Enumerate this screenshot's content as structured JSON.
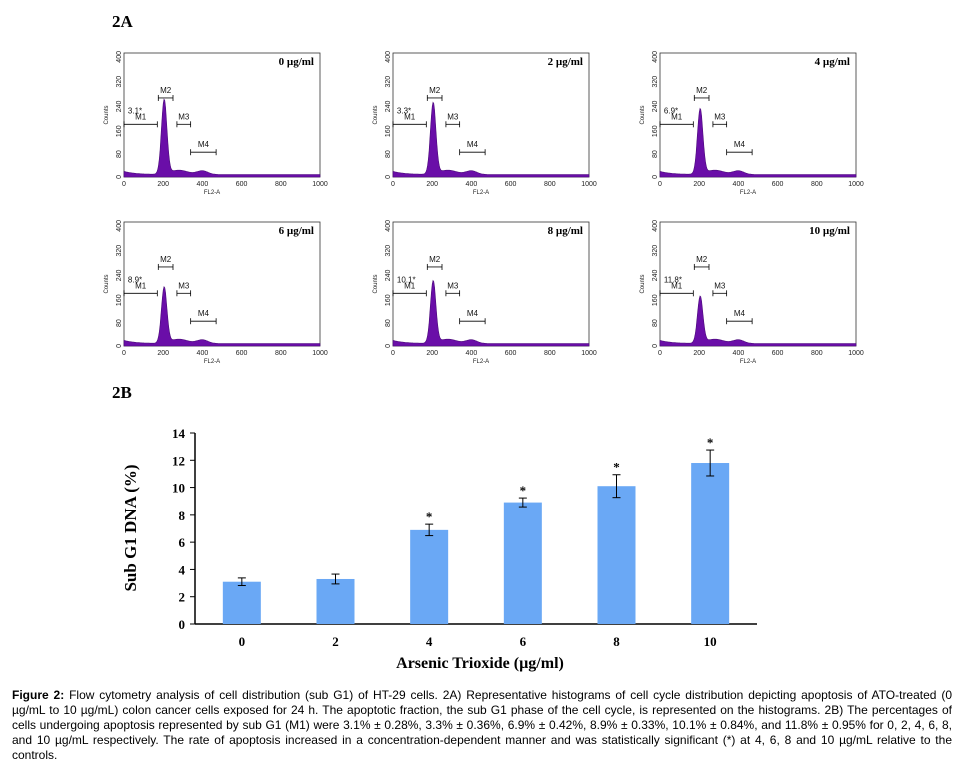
{
  "chart_data": [
    {
      "type": "histogram-grid",
      "panel_label": "2A",
      "x_tick_labels": [
        "0",
        "200",
        "400",
        "600",
        "800",
        "1000"
      ],
      "y_tick_labels": [
        "0",
        "80",
        "160",
        "240",
        "320",
        "400"
      ],
      "xlabel": "FL2-A",
      "ylabel": "Counts",
      "panels": [
        {
          "title": "0 µg/ml",
          "sub_g1": "3.1*",
          "markers": [
            "M1",
            "M2",
            "M3",
            "M4"
          ],
          "peak": 240
        },
        {
          "title": "2 µg/ml",
          "sub_g1": "3.3*",
          "markers": [
            "M1",
            "M2",
            "M3",
            "M4"
          ],
          "peak": 230
        },
        {
          "title": "4 µg/ml",
          "sub_g1": "6.9*",
          "markers": [
            "M1",
            "M2",
            "M3",
            "M4"
          ],
          "peak": 210
        },
        {
          "title": "6 µg/ml",
          "sub_g1": "8.9*",
          "markers": [
            "M1",
            "M2",
            "M3",
            "M4"
          ],
          "peak": 180
        },
        {
          "title": "8  µg/ml",
          "sub_g1": "10.1*",
          "markers": [
            "M1",
            "M2",
            "M3",
            "M4"
          ],
          "peak": 200
        },
        {
          "title": "10 µg/ml",
          "sub_g1": "11.8*",
          "markers": [
            "M1",
            "M2",
            "M3",
            "M4"
          ],
          "peak": 150
        }
      ]
    },
    {
      "type": "bar",
      "panel_label": "2B",
      "categories": [
        "0",
        "2",
        "4",
        "6",
        "8",
        "10"
      ],
      "values": [
        3.1,
        3.3,
        6.9,
        8.9,
        10.1,
        11.8
      ],
      "errors": [
        0.28,
        0.36,
        0.42,
        0.33,
        0.84,
        0.95
      ],
      "significant": [
        false,
        false,
        true,
        true,
        true,
        true
      ],
      "significance_marker": "*",
      "ylabel": "Sub G1 DNA (%)",
      "xlabel": "Arsenic Trioxide (µg/ml)",
      "ylim": [
        0,
        14
      ],
      "y_ticks": [
        0,
        2,
        4,
        6,
        8,
        10,
        12,
        14
      ],
      "bar_color": "#6aa8f5"
    }
  ],
  "caption": {
    "label": "Figure 2:",
    "text": " Flow cytometry analysis of cell distribution (sub G1) of HT-29 cells. 2A) Representative histograms of cell cycle distribution depicting apoptosis of ATO-treated (0 µg/mL to 10 µg/mL) colon cancer cells exposed for 24 h. The apoptotic fraction, the sub G1 phase of the cell cycle, is represented on the histograms. 2B) The percentages of cells undergoing apoptosis represented by sub G1 (M1) were 3.1% ± 0.28%, 3.3% ± 0.36%, 6.9% ± 0.42%, 8.9% ± 0.33%, 10.1% ± 0.84%, and 11.8% ± 0.95% for 0, 2, 4, 6, 8, and 10 µg/mL respectively. The rate of apoptosis increased in a concentration-dependent manner and was statistically significant (*) at 4, 6, 8 and 10 µg/mL relative to the controls."
  }
}
